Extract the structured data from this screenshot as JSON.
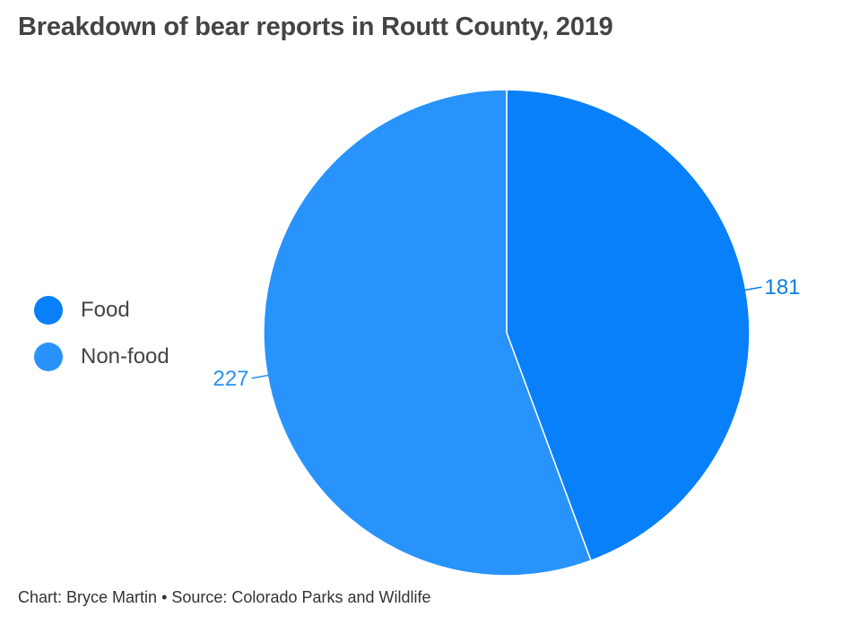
{
  "title": "Breakdown of bear reports in Routt County, 2019",
  "footer": {
    "credit": "Chart: Bryce Martin",
    "separator": "•",
    "source": "Source: Colorado Parks and Wildlife"
  },
  "chart_data": {
    "type": "pie",
    "categories": [
      "Food",
      "Non-food"
    ],
    "values": [
      181,
      227
    ],
    "colors": [
      "#0880fa",
      "#2893fb"
    ],
    "label_colors": [
      "#0a7de6",
      "#2891f0"
    ],
    "start": "12 o'clock",
    "direction": "clockwise",
    "legend_position": "left"
  }
}
